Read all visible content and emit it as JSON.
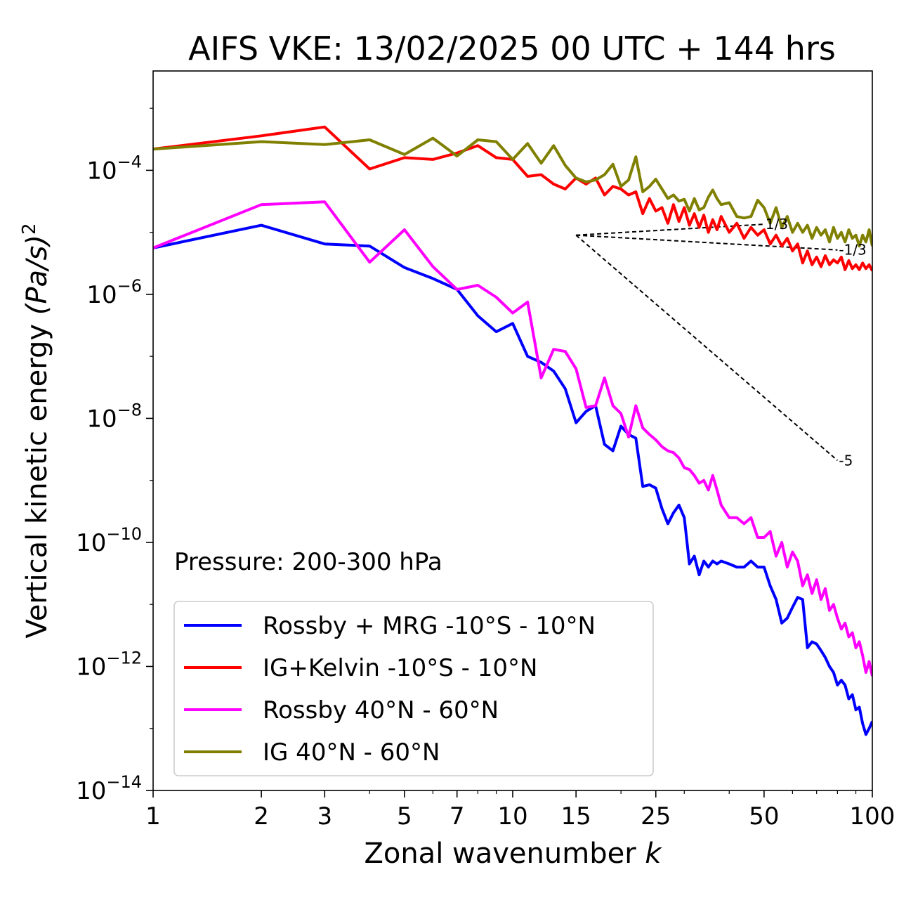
{
  "chart_data": {
    "type": "line",
    "title": "AIFS VKE: 13/02/2025 00 UTC + 144 hrs",
    "xlabel": "Zonal wavenumber",
    "xlabel_var": "k",
    "ylabel": "Vertical kinetic energy",
    "ylabel_unit": "(Pa/s)",
    "ylabel_unit_exp": "2",
    "x_scale": "log",
    "y_scale": "log",
    "xlim": [
      1,
      100
    ],
    "ylim": [
      1e-14,
      0.004
    ],
    "x_ticks": [
      1,
      2,
      3,
      5,
      7,
      10,
      15,
      25,
      50,
      100
    ],
    "x_tick_labels": [
      "1",
      "2",
      "3",
      "5",
      "7",
      "10",
      "15",
      "25",
      "50",
      "100"
    ],
    "y_ticks": [
      -4,
      -6,
      -8,
      -10,
      -12,
      -14
    ],
    "y_tick_base": "10",
    "y_tick_exponents": [
      "−4",
      "−6",
      "−8",
      "−10",
      "−12",
      "−14"
    ],
    "annotation": "Pressure: 200-300 hPa",
    "legend_position": "lower-left",
    "series": [
      {
        "name": "Rossby + MRG -10°S - 10°N",
        "color": "#0000ff",
        "points": [
          [
            1,
            5.6e-06
          ],
          [
            2,
            1.3e-05
          ],
          [
            3,
            6.5e-06
          ],
          [
            4,
            6e-06
          ],
          [
            5,
            2.7e-06
          ],
          [
            6,
            1.8e-06
          ],
          [
            7,
            1.2e-06
          ],
          [
            8,
            4.5e-07
          ],
          [
            9,
            2.5e-07
          ],
          [
            10,
            3.4e-07
          ],
          [
            11,
            1e-07
          ],
          [
            12,
            8e-08
          ],
          [
            13,
            5.8e-08
          ],
          [
            14,
            3e-08
          ],
          [
            15,
            8.5e-09
          ],
          [
            16,
            1.3e-08
          ],
          [
            17,
            1.6e-08
          ],
          [
            18,
            3.8e-09
          ],
          [
            19,
            3e-09
          ],
          [
            20,
            7.5e-09
          ],
          [
            21,
            5.5e-09
          ],
          [
            22,
            4.8e-09
          ],
          [
            23,
            8e-10
          ],
          [
            24,
            8.5e-10
          ],
          [
            25,
            7.5e-10
          ],
          [
            26,
            3.5e-10
          ],
          [
            27,
            2e-10
          ],
          [
            28,
            3e-10
          ],
          [
            29,
            4e-10
          ],
          [
            30,
            2.5e-10
          ],
          [
            31,
            4.5e-11
          ],
          [
            32,
            6e-11
          ],
          [
            33,
            3e-11
          ],
          [
            34,
            5e-11
          ],
          [
            35,
            4e-11
          ],
          [
            36,
            5e-11
          ],
          [
            37,
            4.5e-11
          ],
          [
            38,
            5e-11
          ],
          [
            40,
            4.5e-11
          ],
          [
            42,
            4e-11
          ],
          [
            44,
            4e-11
          ],
          [
            46,
            5e-11
          ],
          [
            48,
            4e-11
          ],
          [
            50,
            4e-11
          ],
          [
            52,
            2e-11
          ],
          [
            54,
            1.2e-11
          ],
          [
            56,
            5e-12
          ],
          [
            58,
            6e-12
          ],
          [
            60,
            9e-12
          ],
          [
            62,
            1.3e-11
          ],
          [
            64,
            1.2e-11
          ],
          [
            66,
            2e-12
          ],
          [
            68,
            2.5e-12
          ],
          [
            70,
            2.3e-12
          ],
          [
            72,
            1.8e-12
          ],
          [
            74,
            1.4e-12
          ],
          [
            76,
            1e-12
          ],
          [
            78,
            8e-13
          ],
          [
            80,
            5e-13
          ],
          [
            82,
            6e-13
          ],
          [
            84,
            5e-13
          ],
          [
            86,
            3e-13
          ],
          [
            88,
            3.5e-13
          ],
          [
            90,
            2e-13
          ],
          [
            92,
            2.2e-13
          ],
          [
            94,
            1.2e-13
          ],
          [
            96,
            8e-14
          ],
          [
            98,
            1e-13
          ],
          [
            100,
            1.3e-13
          ]
        ]
      },
      {
        "name": "IG+Kelvin -10°S - 10°N",
        "color": "#ff0000",
        "points": [
          [
            1,
            0.00022
          ],
          [
            2,
            0.00036
          ],
          [
            3,
            0.0005
          ],
          [
            4,
            0.000105
          ],
          [
            5,
            0.00016
          ],
          [
            6,
            0.00015
          ],
          [
            7,
            0.00019
          ],
          [
            8,
            0.00025
          ],
          [
            9,
            0.00016
          ],
          [
            10,
            0.00015
          ],
          [
            11,
            8e-05
          ],
          [
            12,
            8.5e-05
          ],
          [
            13,
            6e-05
          ],
          [
            14,
            5e-05
          ],
          [
            15,
            7.5e-05
          ],
          [
            16,
            6e-05
          ],
          [
            17,
            7.5e-05
          ],
          [
            18,
            4e-05
          ],
          [
            19,
            5.5e-05
          ],
          [
            20,
            5e-05
          ],
          [
            21,
            4e-05
          ],
          [
            22,
            4.5e-05
          ],
          [
            23,
            2e-05
          ],
          [
            24,
            3.5e-05
          ],
          [
            25,
            2.2e-05
          ],
          [
            26,
            2.5e-05
          ],
          [
            27,
            1.4e-05
          ],
          [
            28,
            2.8e-05
          ],
          [
            29,
            1.5e-05
          ],
          [
            30,
            2.5e-05
          ],
          [
            31,
            1.3e-05
          ],
          [
            32,
            2e-05
          ],
          [
            33,
            1.2e-05
          ],
          [
            34,
            1.9e-05
          ],
          [
            35,
            1e-05
          ],
          [
            36,
            1.6e-05
          ],
          [
            37,
            1.1e-05
          ],
          [
            38,
            1.8e-05
          ],
          [
            40,
            1e-05
          ],
          [
            42,
            1.4e-05
          ],
          [
            44,
            8e-06
          ],
          [
            46,
            1.2e-05
          ],
          [
            48,
            9e-06
          ],
          [
            50,
            1.1e-05
          ],
          [
            52,
            6.5e-06
          ],
          [
            54,
            9e-06
          ],
          [
            56,
            6e-06
          ],
          [
            58,
            8e-06
          ],
          [
            60,
            5e-06
          ],
          [
            62,
            6.5e-06
          ],
          [
            64,
            3.2e-06
          ],
          [
            66,
            5e-06
          ],
          [
            68,
            3e-06
          ],
          [
            70,
            4e-06
          ],
          [
            72,
            2.8e-06
          ],
          [
            74,
            4.2e-06
          ],
          [
            76,
            3e-06
          ],
          [
            78,
            3.6e-06
          ],
          [
            80,
            3.2e-06
          ],
          [
            82,
            4e-06
          ],
          [
            84,
            2.5e-06
          ],
          [
            86,
            3.5e-06
          ],
          [
            88,
            2.6e-06
          ],
          [
            90,
            3e-06
          ],
          [
            92,
            2.5e-06
          ],
          [
            94,
            3.2e-06
          ],
          [
            96,
            2.6e-06
          ],
          [
            98,
            3e-06
          ],
          [
            100,
            2.4e-06
          ]
        ]
      },
      {
        "name": "Rossby 40°N - 60°N",
        "color": "#ff00ff",
        "points": [
          [
            1,
            5.6e-06
          ],
          [
            2,
            2.8e-05
          ],
          [
            3,
            3.1e-05
          ],
          [
            4,
            3.3e-06
          ],
          [
            5,
            1.1e-05
          ],
          [
            6,
            2.8e-06
          ],
          [
            7,
            1.2e-06
          ],
          [
            8,
            1.4e-06
          ],
          [
            9,
            9e-07
          ],
          [
            10,
            5e-07
          ],
          [
            11,
            7.5e-07
          ],
          [
            12,
            4.5e-08
          ],
          [
            13,
            1.3e-07
          ],
          [
            14,
            1.2e-07
          ],
          [
            15,
            6.3e-08
          ],
          [
            16,
            1.5e-08
          ],
          [
            17,
            1.6e-08
          ],
          [
            18,
            4.5e-08
          ],
          [
            19,
            1.6e-08
          ],
          [
            20,
            1.2e-08
          ],
          [
            21,
            5e-09
          ],
          [
            22,
            1.6e-08
          ],
          [
            23,
            7e-09
          ],
          [
            24,
            5.5e-09
          ],
          [
            25,
            4.5e-09
          ],
          [
            26,
            3.5e-09
          ],
          [
            27,
            3e-09
          ],
          [
            28,
            2.8e-09
          ],
          [
            29,
            2.3e-09
          ],
          [
            30,
            1.6e-09
          ],
          [
            31,
            1.5e-09
          ],
          [
            32,
            1.2e-09
          ],
          [
            33,
            9e-10
          ],
          [
            34,
            1e-09
          ],
          [
            35,
            7e-10
          ],
          [
            36,
            1.2e-09
          ],
          [
            37,
            7e-10
          ],
          [
            38,
            4e-10
          ],
          [
            40,
            2.5e-10
          ],
          [
            42,
            2.5e-10
          ],
          [
            44,
            2e-10
          ],
          [
            46,
            2.5e-10
          ],
          [
            48,
            1.2e-10
          ],
          [
            50,
            1.2e-10
          ],
          [
            52,
            1.5e-10
          ],
          [
            54,
            6e-11
          ],
          [
            56,
            1e-10
          ],
          [
            58,
            4e-11
          ],
          [
            60,
            7e-11
          ],
          [
            62,
            5e-11
          ],
          [
            64,
            2e-11
          ],
          [
            66,
            3e-11
          ],
          [
            68,
            1.5e-11
          ],
          [
            70,
            2.5e-11
          ],
          [
            72,
            1.2e-11
          ],
          [
            74,
            1.8e-11
          ],
          [
            76,
            8e-12
          ],
          [
            78,
            1e-11
          ],
          [
            80,
            6e-12
          ],
          [
            82,
            4e-12
          ],
          [
            84,
            5e-12
          ],
          [
            86,
            3e-12
          ],
          [
            88,
            3.5e-12
          ],
          [
            90,
            2e-12
          ],
          [
            92,
            2.5e-12
          ],
          [
            94,
            1.5e-12
          ],
          [
            96,
            8e-13
          ],
          [
            98,
            1.2e-12
          ],
          [
            100,
            7e-13
          ]
        ]
      },
      {
        "name": "IG 40°N - 60°N",
        "color": "#808000",
        "points": [
          [
            1,
            0.00022
          ],
          [
            2,
            0.00029
          ],
          [
            3,
            0.00026
          ],
          [
            4,
            0.00031
          ],
          [
            5,
            0.00018
          ],
          [
            6,
            0.00033
          ],
          [
            7,
            0.00017
          ],
          [
            8,
            0.00031
          ],
          [
            9,
            0.00029
          ],
          [
            10,
            0.00015
          ],
          [
            11,
            0.00027
          ],
          [
            12,
            0.00013
          ],
          [
            13,
            0.00025
          ],
          [
            14,
            0.00012
          ],
          [
            15,
            7.5e-05
          ],
          [
            16,
            6.5e-05
          ],
          [
            17,
            7e-05
          ],
          [
            18,
            8.5e-05
          ],
          [
            19,
            0.000125
          ],
          [
            20,
            5.5e-05
          ],
          [
            21,
            7e-05
          ],
          [
            22,
            0.000165
          ],
          [
            23,
            4.5e-05
          ],
          [
            24,
            5.5e-05
          ],
          [
            25,
            7.2e-05
          ],
          [
            26,
            5e-05
          ],
          [
            27,
            3.5e-05
          ],
          [
            28,
            4e-05
          ],
          [
            29,
            3.2e-05
          ],
          [
            30,
            3.4e-05
          ],
          [
            31,
            2.2e-05
          ],
          [
            32,
            3.5e-05
          ],
          [
            33,
            2.3e-05
          ],
          [
            34,
            2.5e-05
          ],
          [
            35,
            3.7e-05
          ],
          [
            36,
            4.8e-05
          ],
          [
            37,
            3.5e-05
          ],
          [
            38,
            2.8e-05
          ],
          [
            40,
            3e-05
          ],
          [
            42,
            1.8e-05
          ],
          [
            44,
            1.7e-05
          ],
          [
            46,
            1.8e-05
          ],
          [
            48,
            3.3e-05
          ],
          [
            50,
            2.5e-05
          ],
          [
            52,
            1.4e-05
          ],
          [
            54,
            2.5e-05
          ],
          [
            56,
            1.2e-05
          ],
          [
            58,
            1.8e-05
          ],
          [
            60,
            1e-05
          ],
          [
            62,
            1.4e-05
          ],
          [
            64,
            1e-05
          ],
          [
            66,
            1.3e-05
          ],
          [
            68,
            8e-06
          ],
          [
            70,
            1.2e-05
          ],
          [
            72,
            9e-06
          ],
          [
            74,
            1.1e-05
          ],
          [
            76,
            7e-06
          ],
          [
            78,
            1.2e-05
          ],
          [
            80,
            8e-06
          ],
          [
            82,
            1e-05
          ],
          [
            84,
            7e-06
          ],
          [
            86,
            1.1e-05
          ],
          [
            88,
            8e-06
          ],
          [
            90,
            9e-06
          ],
          [
            92,
            6e-06
          ],
          [
            94,
            9e-06
          ],
          [
            96,
            7e-06
          ],
          [
            98,
            1.1e-05
          ],
          [
            100,
            6e-06
          ]
        ]
      }
    ],
    "reference_lines": [
      {
        "slope_label": "1/3",
        "points": [
          [
            15,
            9e-06
          ],
          [
            50,
            1.35e-05
          ]
        ]
      },
      {
        "slope_label": "-1/3",
        "points": [
          [
            15,
            9e-06
          ],
          [
            80,
            5.2e-06
          ]
        ]
      },
      {
        "slope_label": "-5",
        "points": [
          [
            15,
            9e-06
          ],
          [
            80,
            2.1e-09
          ]
        ]
      }
    ]
  }
}
